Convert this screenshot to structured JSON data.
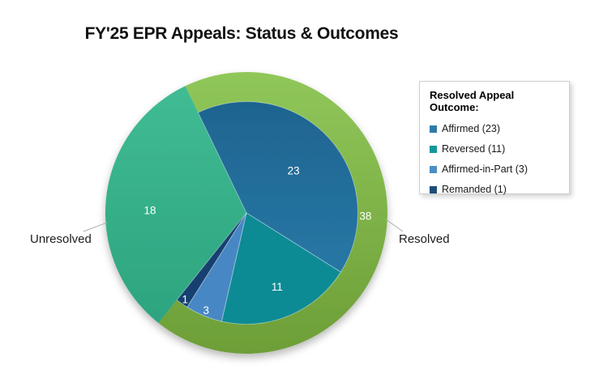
{
  "title": "FY'25 EPR Appeals: Status & Outcomes",
  "chart_data": {
    "type": "pie",
    "subtype": "pie-with-status-ring",
    "title": "FY'25 EPR Appeals: Status & Outcomes",
    "total": 56,
    "rotation_deg": -25.7,
    "legend_position": "right",
    "status_ring": [
      {
        "label": "Resolved",
        "value": 38,
        "color": "#7fb246",
        "color_top": "#90c75a",
        "color_bottom": "#6d9e37",
        "value_label": "38"
      },
      {
        "label": "Unresolved",
        "value": 18,
        "color": "#35ad87",
        "color_top": "#41bd95",
        "color_bottom": "#2aa17c",
        "value_label": "18"
      }
    ],
    "resolved_outcomes": [
      {
        "label": "Affirmed",
        "value": 23,
        "color": "#21688f",
        "color_top": "#1d618c",
        "color_bottom": "#2b80af",
        "value_label": "23"
      },
      {
        "label": "Reversed",
        "value": 11,
        "color": "#0d8b94",
        "value_label": "11"
      },
      {
        "label": "Affirmed-in-Part",
        "value": 3,
        "color": "#4787c4",
        "value_label": "3"
      },
      {
        "label": "Remanded",
        "value": 1,
        "color": "#14406f",
        "value_label": "1"
      }
    ],
    "callouts": [
      {
        "text": "Unresolved"
      },
      {
        "text": "Resolved"
      }
    ],
    "legend": {
      "title": "Resolved Appeal Outcome:",
      "items": [
        {
          "label": "Affirmed (23)",
          "color": "#2d7ca8"
        },
        {
          "label": "Reversed (11)",
          "color": "#13989f"
        },
        {
          "label": "Affirmed-in-Part (3)",
          "color": "#4a8fc5"
        },
        {
          "label": "Remanded (1)",
          "color": "#1d4e79"
        }
      ]
    }
  }
}
